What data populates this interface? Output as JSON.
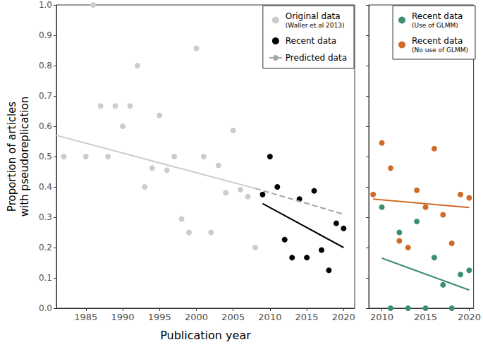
{
  "chart_data": [
    {
      "type": "scatter",
      "x_label": "Publication year",
      "y_label": "Proportion of articles\nwith pseudoreplication",
      "xlim": [
        1981,
        2021.5
      ],
      "xticks": [
        1985,
        1990,
        1995,
        2000,
        2005,
        2010,
        2015,
        2020
      ],
      "ylim": [
        0,
        1
      ],
      "yticks": [
        {
          "value": 0,
          "label": "0.0"
        },
        0.1,
        0.2,
        0.3,
        0.4,
        0.5,
        0.6,
        0.7,
        0.8,
        0.9,
        {
          "value": 1,
          "label": "1.0"
        }
      ],
      "grid": false,
      "legend": "upper right",
      "series": [
        {
          "name": "Original data (Waller et.al 2013)",
          "type": "scatter",
          "marker": "circle",
          "color": "#cccccc",
          "x": [
            1982,
            1985,
            1986,
            1987,
            1988,
            1989,
            1990,
            1991,
            1992,
            1993,
            1994,
            1995,
            1996,
            1997,
            1998,
            1999,
            2000,
            2001,
            2002,
            2003,
            2004,
            2005,
            2006,
            2007,
            2008
          ],
          "values": [
            0.5,
            0.5,
            1.0,
            0.667,
            0.5,
            0.667,
            0.6,
            0.667,
            0.8,
            0.4,
            0.462,
            0.636,
            0.455,
            0.5,
            0.294,
            0.25,
            0.857,
            0.5,
            0.25,
            0.471,
            0.381,
            0.586,
            0.391,
            0.368,
            0.2
          ],
          "fit": {
            "x": [
              1981,
              2008
            ],
            "y": [
              0.57,
              0.395
            ]
          }
        },
        {
          "name": "Recent data",
          "type": "scatter",
          "marker": "circle",
          "color": "#000000",
          "x": [
            2009,
            2010,
            2011,
            2012,
            2013,
            2014,
            2015,
            2016,
            2017,
            2018,
            2019,
            2020
          ],
          "values": [
            0.375,
            0.5,
            0.4,
            0.226,
            0.167,
            0.36,
            0.167,
            0.387,
            0.192,
            0.125,
            0.28,
            0.263
          ],
          "fit": {
            "x": [
              2009,
              2020
            ],
            "y": [
              0.345,
              0.2
            ]
          }
        },
        {
          "name": "Predicted data",
          "type": "line",
          "line_style": "dashed",
          "color": "#a6a6a6",
          "x": [
            2008,
            2020
          ],
          "values": [
            0.395,
            0.31
          ]
        }
      ]
    },
    {
      "type": "scatter",
      "xlim": [
        2008.5,
        2020.5
      ],
      "xticks": [
        2010,
        2015,
        2020
      ],
      "ylim": [
        0,
        1
      ],
      "yticks": [
        {
          "value": 0,
          "label": "0.0"
        },
        0.1,
        0.2,
        0.3,
        0.4,
        0.5,
        0.6,
        0.7,
        0.8,
        0.9,
        {
          "value": 1,
          "label": "1.0"
        }
      ],
      "tick_labels": "x",
      "grid": false,
      "legend": "upper right",
      "series": [
        {
          "name": "Recent data (Use of GLMM)",
          "type": "scatter",
          "marker": "circle",
          "color": "#3b8f6e",
          "x": [
            2010,
            2011,
            2012,
            2013,
            2014,
            2015,
            2016,
            2017,
            2018,
            2019,
            2020
          ],
          "values": [
            0.333,
            0,
            0.25,
            0,
            0.286,
            0,
            0.167,
            0.077,
            0,
            0.111,
            0.125
          ],
          "fit": {
            "x": [
              2010,
              2020
            ],
            "y": [
              0.165,
              0.06
            ]
          }
        },
        {
          "name": "Recent data (No use of GLMM)",
          "type": "scatter",
          "marker": "circle",
          "color": "#cf6a28",
          "x": [
            2009,
            2010,
            2011,
            2012,
            2013,
            2014,
            2015,
            2016,
            2017,
            2018,
            2019,
            2020
          ],
          "values": [
            0.375,
            0.545,
            0.462,
            0.222,
            0.2,
            0.389,
            0.333,
            0.526,
            0.308,
            0.214,
            0.375,
            0.364
          ],
          "fit": {
            "x": [
              2009,
              2020
            ],
            "y": [
              0.36,
              0.332
            ]
          }
        }
      ]
    }
  ]
}
